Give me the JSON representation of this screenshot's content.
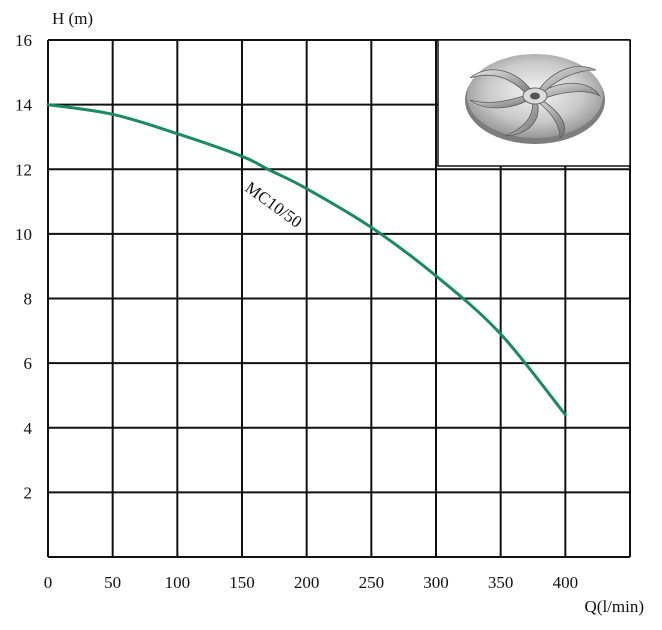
{
  "chart_data": {
    "type": "line",
    "title": "",
    "xlabel": "Q(l/min)",
    "ylabel": "H (m)",
    "xlim": [
      0,
      450
    ],
    "ylim": [
      0,
      16
    ],
    "x_ticks": [
      0,
      50,
      100,
      150,
      200,
      250,
      300,
      350,
      400
    ],
    "y_ticks": [
      2,
      4,
      6,
      8,
      10,
      12,
      14,
      16
    ],
    "grid": true,
    "series": [
      {
        "name": "MC10/50",
        "color": "#1a8a63",
        "x": [
          0,
          50,
          100,
          150,
          170,
          200,
          250,
          300,
          350,
          400
        ],
        "y": [
          14.0,
          13.7,
          13.1,
          12.4,
          12.0,
          11.4,
          10.2,
          8.7,
          6.9,
          4.4
        ]
      }
    ],
    "inset_image": "impeller-photo"
  }
}
